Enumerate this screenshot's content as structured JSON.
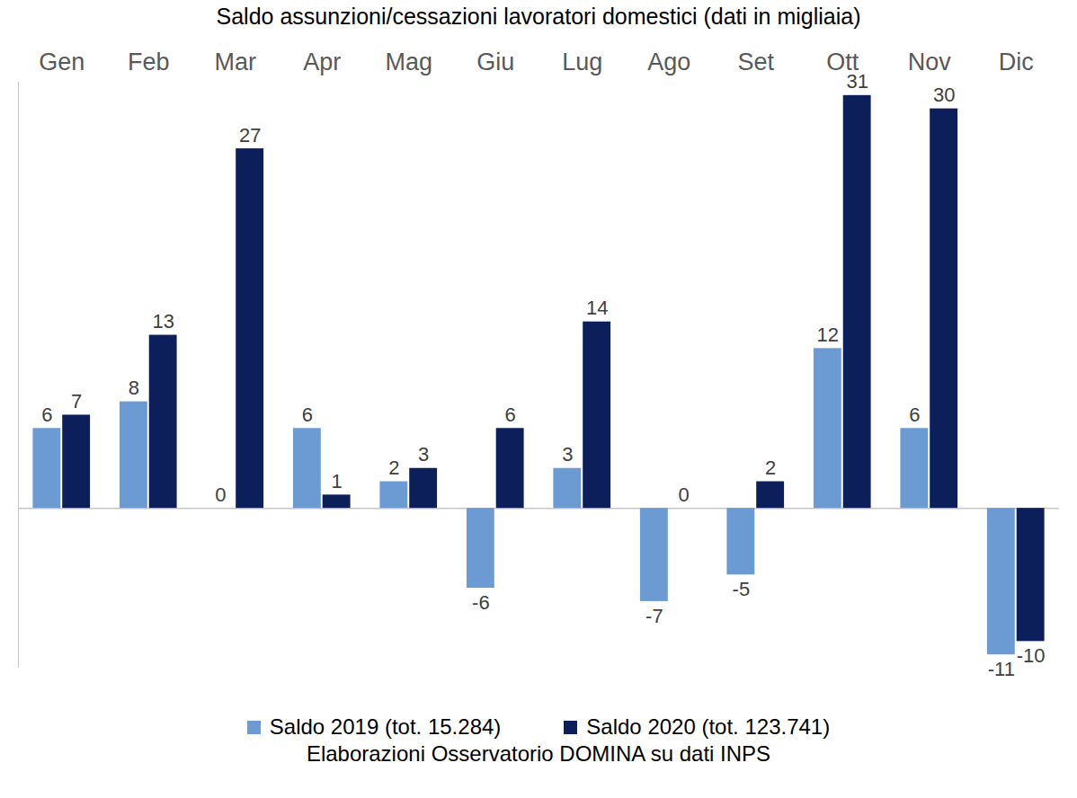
{
  "chart_data": {
    "type": "bar",
    "title": "Saldo assunzioni/cessazioni lavoratori domestici (dati in migliaia)",
    "caption": "Elaborazioni Osservatorio DOMINA su dati INPS",
    "categories": [
      "Gen",
      "Feb",
      "Mar",
      "Apr",
      "Mag",
      "Giu",
      "Lug",
      "Ago",
      "Set",
      "Ott",
      "Nov",
      "Dic"
    ],
    "series": [
      {
        "name": "Saldo 2019 (tot. 15.284)",
        "color": "#6b9bd2",
        "values": [
          6,
          8,
          0,
          6,
          2,
          -6,
          3,
          -7,
          -5,
          12,
          6,
          -11
        ]
      },
      {
        "name": "Saldo 2020 (tot. 123.741)",
        "color": "#0c1f5b",
        "values": [
          7,
          13,
          27,
          1,
          3,
          6,
          14,
          0,
          2,
          31,
          30,
          -10
        ]
      }
    ],
    "ylim": [
      -12,
      32
    ],
    "yticks": [
      0
    ],
    "grid": true,
    "tick_labels": "x",
    "data_labels": true,
    "legend": "bottom"
  }
}
